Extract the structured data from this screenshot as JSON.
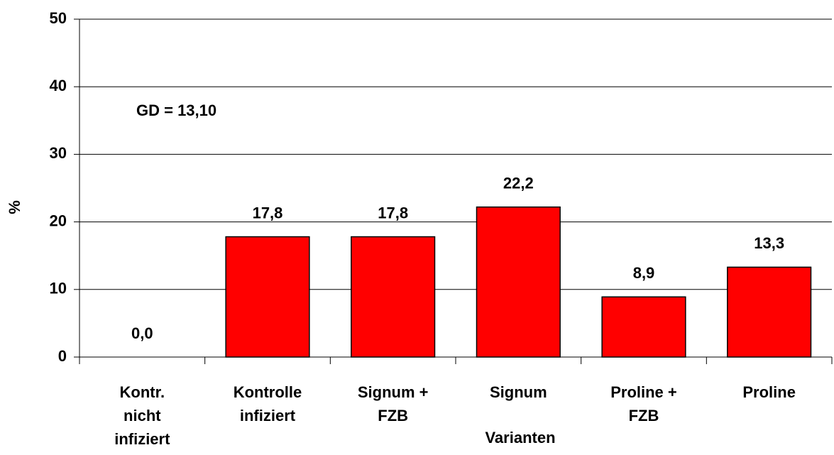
{
  "chart_data": {
    "type": "bar",
    "categories": [
      "Kontr.\nnicht\ninfiziert",
      "Kontrolle\ninfiziert",
      "Signum +\nFZB",
      "Signum",
      "Proline +\nFZB",
      "Proline"
    ],
    "values": [
      0.0,
      17.8,
      17.8,
      22.2,
      8.9,
      13.3
    ],
    "value_labels": [
      "0,0",
      "17,8",
      "17,8",
      "22,2",
      "8,9",
      "13,3"
    ],
    "color": "#ff0000",
    "ylim": [
      0,
      50
    ],
    "yticks": [
      0,
      10,
      20,
      30,
      40,
      50
    ],
    "grid": true,
    "x_label": "Varianten",
    "y_label": "%",
    "annotation": "GD = 13,10"
  }
}
